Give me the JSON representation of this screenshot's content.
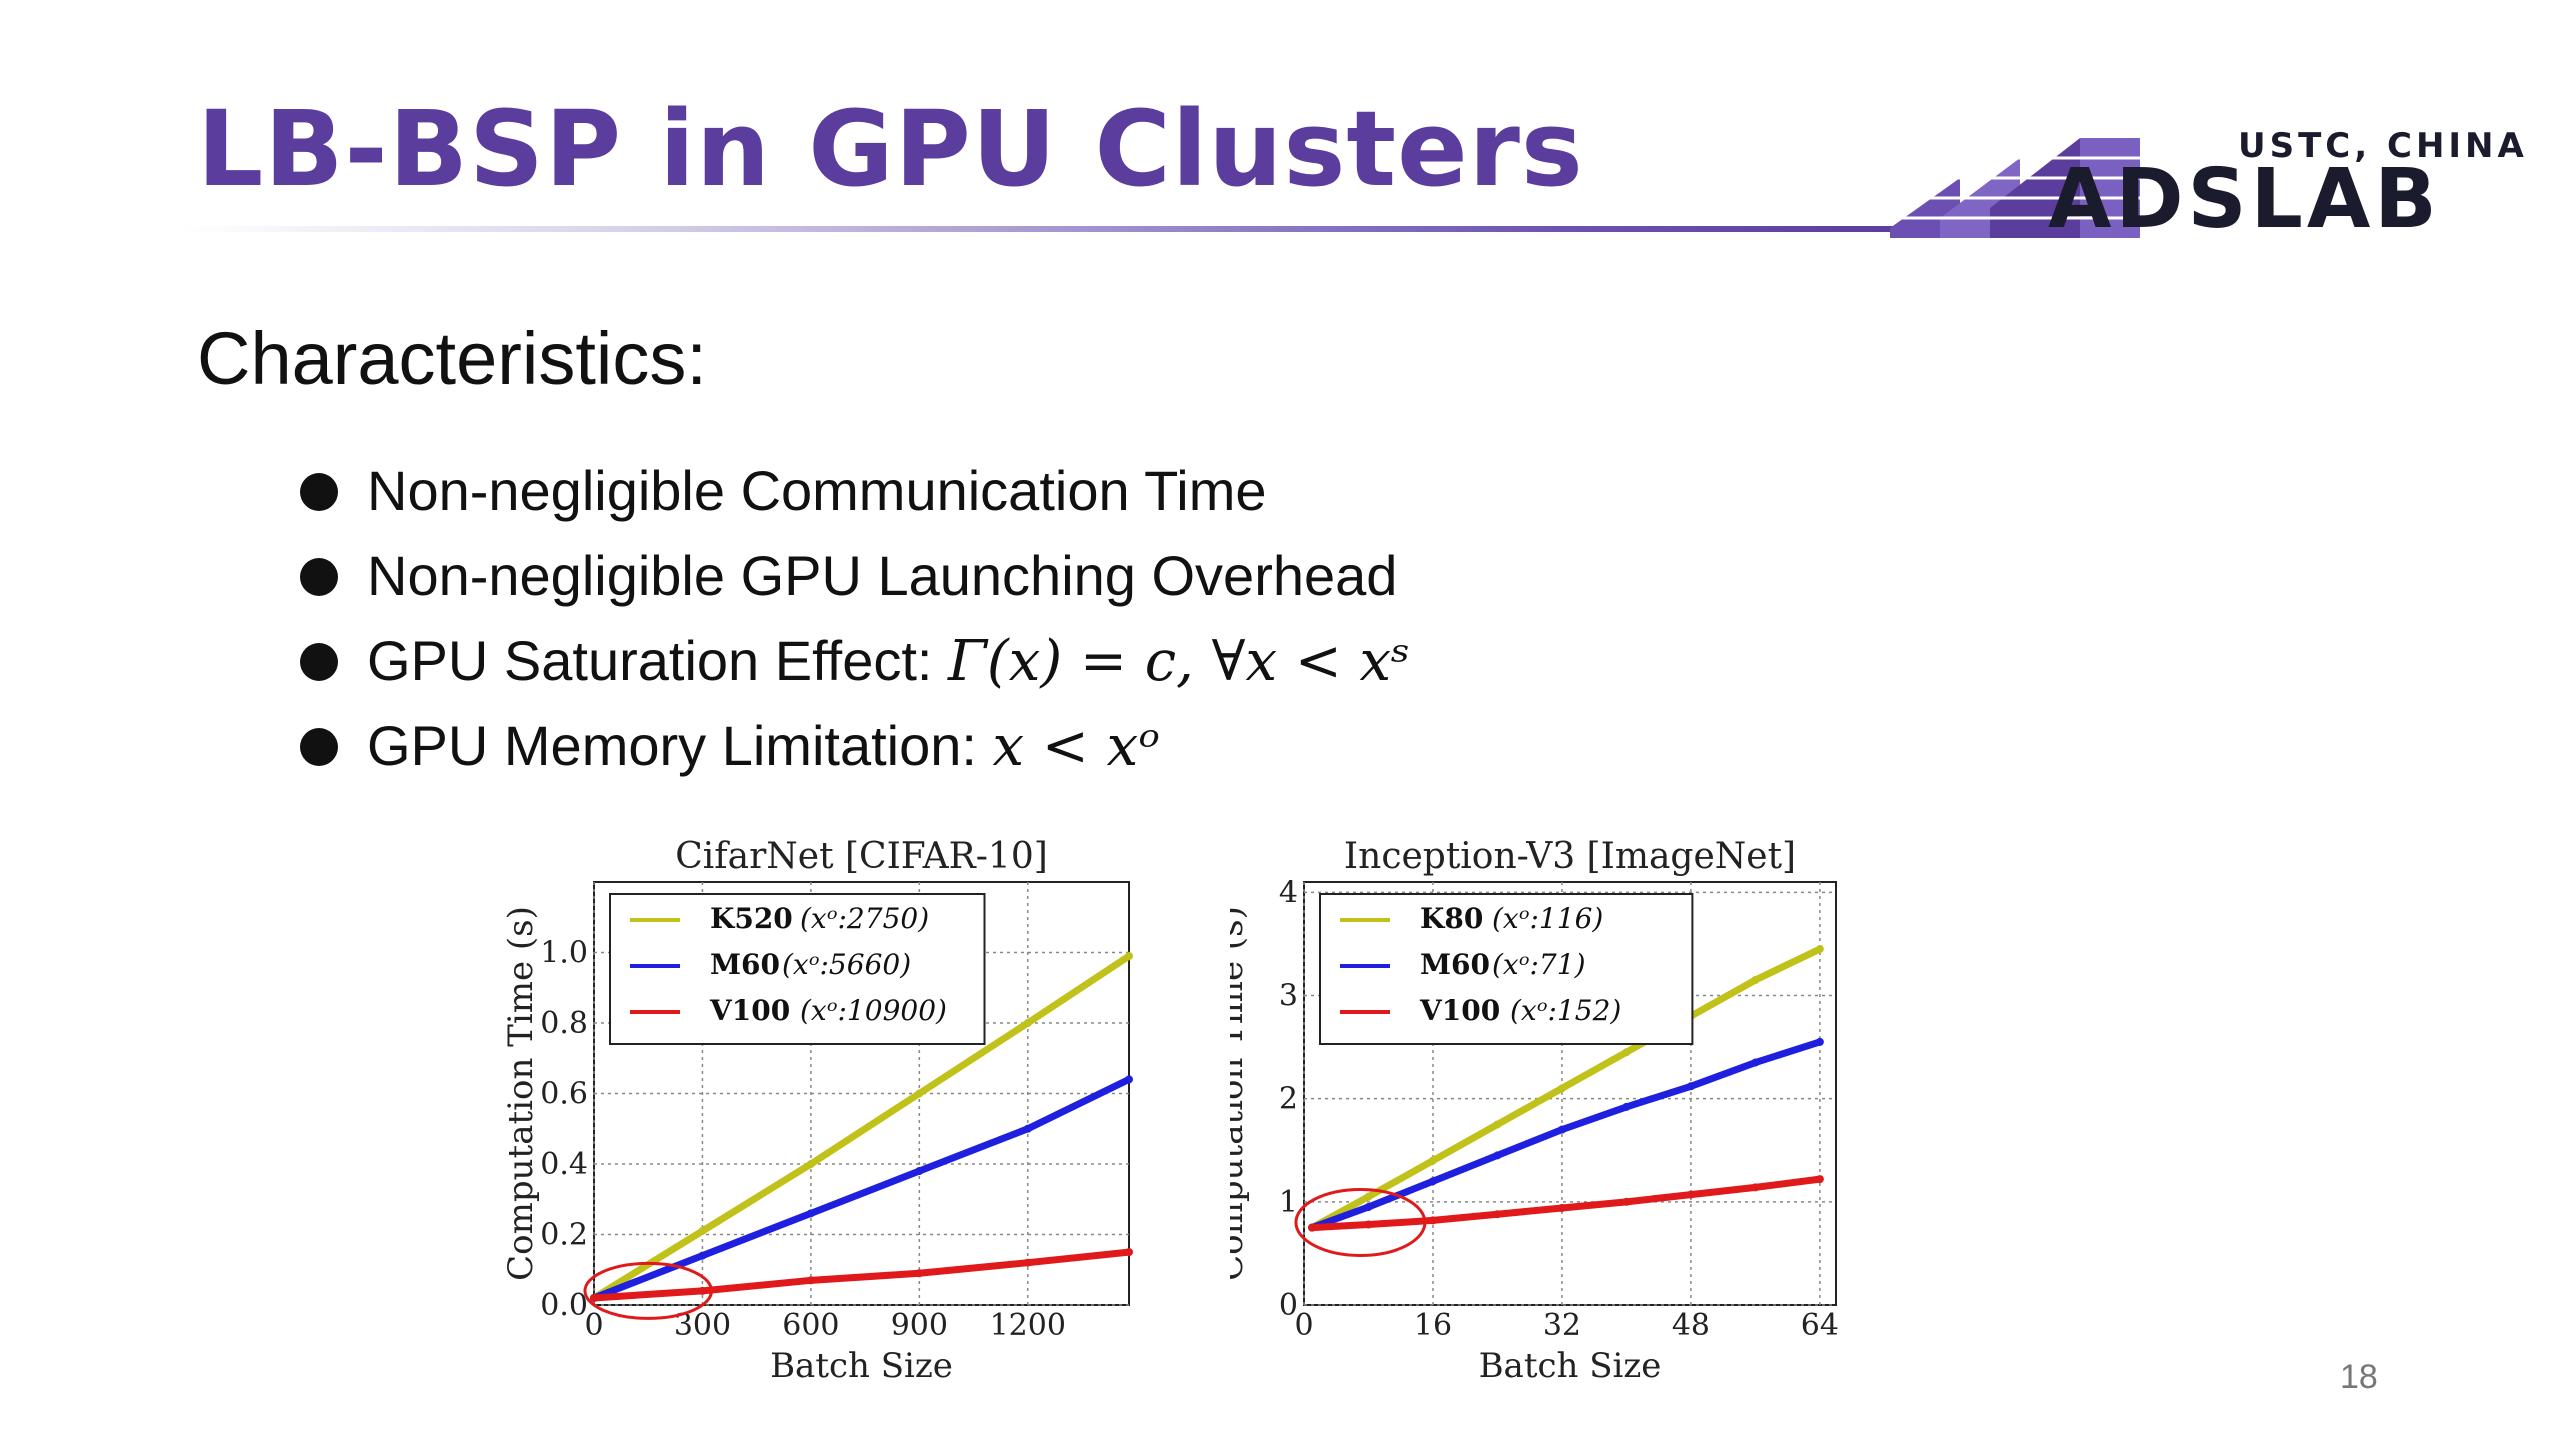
{
  "slide": {
    "title": "LB-BSP in GPU Clusters",
    "logo": {
      "top_text": "USTC, CHINA",
      "main_text": "ADSLAB"
    },
    "heading": "Characteristics:",
    "bullets": [
      {
        "text": "Non-negligible Communication Time",
        "math": ""
      },
      {
        "text": "Non-negligible GPU Launching Overhead",
        "math": ""
      },
      {
        "text": "GPU Saturation Effect: ",
        "math": "Γ(x) = c,  ∀x < xˢ"
      },
      {
        "text": "GPU Memory Limitation: ",
        "math": "x < xᵒ"
      }
    ],
    "page_number": "18",
    "colors": {
      "title": "#5b3d9e",
      "yellow": "#c0c21a",
      "blue": "#1f1fe0",
      "red": "#e01a1a",
      "highlight_circle": "#e01a1a"
    }
  },
  "chart_data": [
    {
      "type": "line",
      "title": "CifarNet [CIFAR-10]",
      "xlabel": "Batch Size",
      "ylabel": "Computation Time (s)",
      "xlim": [
        0,
        1480
      ],
      "ylim": [
        0,
        1.2
      ],
      "xticks": [
        0,
        300,
        600,
        900,
        1200
      ],
      "xtick_labels": [
        "0",
        "300",
        "600",
        "900",
        "1200"
      ],
      "yticks": [
        0.0,
        0.2,
        0.4,
        0.6,
        0.8,
        1.0
      ],
      "ytick_labels": [
        "0.0",
        "0.2",
        "0.4",
        "0.6",
        "0.8",
        "1.0"
      ],
      "grid": true,
      "legend": "top-left",
      "series": [
        {
          "name": "K520",
          "note": "(xᵒ:2750)",
          "color": "#c0c21a",
          "x": [
            0,
            300,
            600,
            900,
            1200,
            1480
          ],
          "y": [
            0.02,
            0.21,
            0.4,
            0.6,
            0.8,
            0.99
          ]
        },
        {
          "name": "M60",
          "note": "(xᵒ:5660)",
          "color": "#1f1fe0",
          "x": [
            0,
            300,
            600,
            900,
            1200,
            1480
          ],
          "y": [
            0.02,
            0.14,
            0.26,
            0.38,
            0.5,
            0.64
          ]
        },
        {
          "name": "V100",
          "note": "(xᵒ:10900)",
          "color": "#e01a1a",
          "x": [
            0,
            300,
            600,
            900,
            1200,
            1480
          ],
          "y": [
            0.02,
            0.04,
            0.07,
            0.09,
            0.12,
            0.15
          ]
        }
      ],
      "highlight": {
        "label": "saturation region",
        "cx": 150,
        "cy": 0.04,
        "rx": 175,
        "ry": 0.078
      }
    },
    {
      "type": "line",
      "title": "Inception-V3 [ImageNet]",
      "xlabel": "Batch Size",
      "ylabel": "Computation Time (s)",
      "xlim": [
        0,
        66
      ],
      "ylim": [
        0,
        4.1
      ],
      "xticks": [
        0,
        16,
        32,
        48,
        64
      ],
      "xtick_labels": [
        "0",
        "16",
        "32",
        "48",
        "64"
      ],
      "yticks": [
        0,
        1,
        2,
        3,
        4
      ],
      "ytick_labels": [
        "0",
        "1",
        "2",
        "3",
        "4"
      ],
      "grid": true,
      "legend": "top-left",
      "series": [
        {
          "name": "K80",
          "note": "(xᵒ:116)",
          "color": "#c0c21a",
          "x": [
            1,
            8,
            16,
            24,
            32,
            40,
            48,
            56,
            64
          ],
          "y": [
            0.75,
            1.05,
            1.4,
            1.75,
            2.1,
            2.45,
            2.8,
            3.15,
            3.45
          ]
        },
        {
          "name": "M60",
          "note": "(xᵒ:71)",
          "color": "#1f1fe0",
          "x": [
            1,
            8,
            16,
            24,
            32,
            40,
            48,
            56,
            64
          ],
          "y": [
            0.75,
            0.95,
            1.2,
            1.45,
            1.7,
            1.92,
            2.12,
            2.35,
            2.55
          ]
        },
        {
          "name": "V100",
          "note": "(xᵒ:152)",
          "color": "#e01a1a",
          "x": [
            1,
            8,
            16,
            24,
            32,
            40,
            48,
            56,
            64
          ],
          "y": [
            0.75,
            0.78,
            0.82,
            0.88,
            0.94,
            1.0,
            1.07,
            1.14,
            1.22
          ]
        }
      ],
      "highlight": {
        "label": "saturation region",
        "cx": 7,
        "cy": 0.8,
        "rx": 8,
        "ry": 0.32
      }
    }
  ]
}
